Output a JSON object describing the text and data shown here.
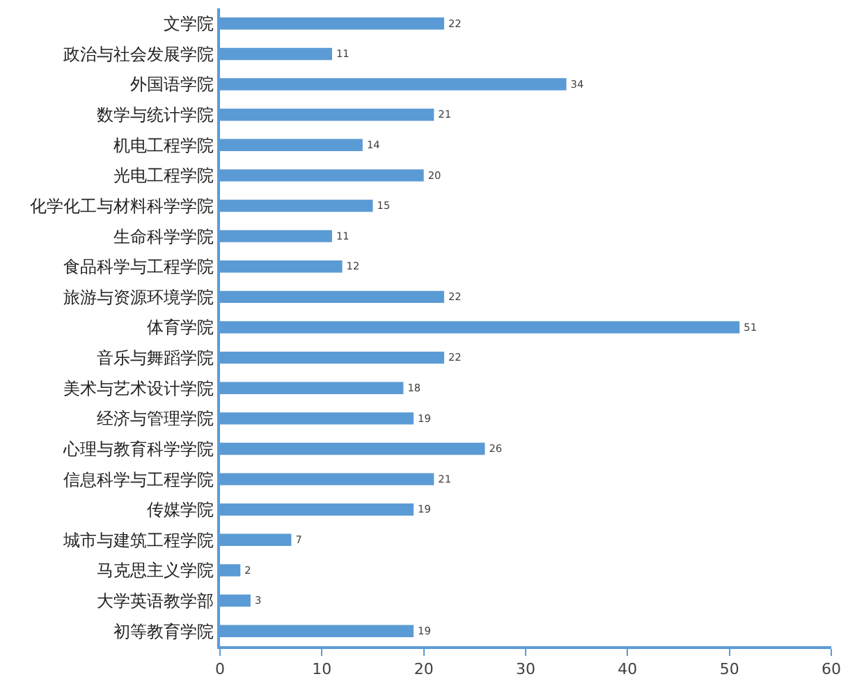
{
  "chart_data": {
    "type": "bar",
    "orientation": "horizontal",
    "categories": [
      "文学院",
      "政治与社会发展学院",
      "外国语学院",
      "数学与统计学院",
      "机电工程学院",
      "光电工程学院",
      "化学化工与材料科学学院",
      "生命科学学院",
      "食品科学与工程学院",
      "旅游与资源环境学院",
      "体育学院",
      "音乐与舞蹈学院",
      "美术与艺术设计学院",
      "经济与管理学院",
      "心理与教育科学学院",
      "信息科学与工程学院",
      "传媒学院",
      "城市与建筑工程学院",
      "马克思主义学院",
      "大学英语教学部",
      "初等教育学院"
    ],
    "values": [
      22,
      11,
      34,
      21,
      14,
      20,
      15,
      11,
      12,
      22,
      51,
      22,
      18,
      19,
      26,
      21,
      19,
      7,
      2,
      3,
      19
    ],
    "color": "#5b9bd5",
    "xlim": [
      0,
      60
    ],
    "xticks": [
      0,
      10,
      20,
      30,
      40,
      50,
      60
    ],
    "data_labels": true
  }
}
